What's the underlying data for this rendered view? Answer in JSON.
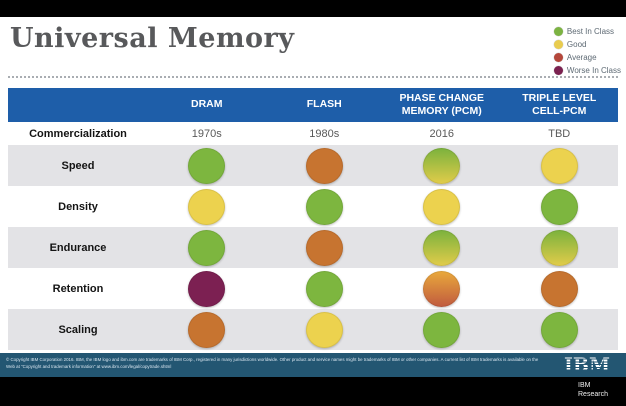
{
  "title": "Universal Memory",
  "legend": [
    {
      "label": "Best In Class",
      "color": "#7cb342"
    },
    {
      "label": "Good",
      "color": "#e9cc4f"
    },
    {
      "label": "Average",
      "color": "#b5473b"
    },
    {
      "label": "Worse In Class",
      "color": "#7b2150"
    }
  ],
  "chart_data": {
    "type": "table",
    "title": "Universal Memory",
    "columns": [
      "DRAM",
      "FLASH",
      "PHASE CHANGE MEMORY (PCM)",
      "TRIPLE LEVEL CELL-PCM"
    ],
    "commercialization_row": {
      "label": "Commercialization",
      "values": [
        "1970s",
        "1980s",
        "2016",
        "TBD"
      ]
    },
    "rating_rows": [
      {
        "label": "Speed",
        "ratings": [
          "best",
          "average",
          "best-good",
          "good"
        ]
      },
      {
        "label": "Density",
        "ratings": [
          "good",
          "best",
          "good",
          "best"
        ]
      },
      {
        "label": "Endurance",
        "ratings": [
          "best",
          "average",
          "best-good",
          "best-good"
        ]
      },
      {
        "label": "Retention",
        "ratings": [
          "worst",
          "best",
          "good-average",
          "average"
        ]
      },
      {
        "label": "Scaling",
        "ratings": [
          "average",
          "good",
          "best",
          "best"
        ]
      }
    ],
    "rating_scale": {
      "best": "Best In Class",
      "good": "Good",
      "average": "Average",
      "worst": "Worse In Class"
    }
  },
  "rating_colors": {
    "best": "#7db63f",
    "good": "#ecd24e",
    "average": "#c77430",
    "worst": "#7c2052",
    "best-good": [
      "#7bb23d",
      "#e2cc4a"
    ],
    "good-average": [
      "#e9a93c",
      "#c05a3e"
    ]
  },
  "colors": {
    "header_bar": "#1e5ea9",
    "footer_bar": "#235672",
    "alt_row": "#e3e3e6"
  },
  "footer": {
    "copyright": "© Copyright IBM Corporation 2016. IBM, the IBM logo and ibm.com are trademarks of IBM Corp., registered in many jurisdictions worldwide. Other product and service names might be trademarks of IBM or other companies. A current list of IBM trademarks is available on the Web at \"Copyright and trademark information\" at www.ibm.com/legal/copytrade.shtml",
    "logo_text": "IBM",
    "brand_line1": "IBM",
    "brand_line2": "Research"
  }
}
